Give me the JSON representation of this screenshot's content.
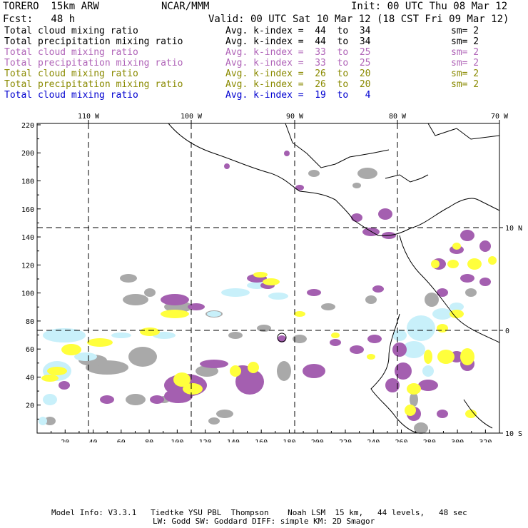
{
  "header": {
    "model_title": "TORERO  15km ARW",
    "org": "NCAR/MMM",
    "init": "Init: 00 UTC Thu 08 Mar 12",
    "fcst": "Fcst:   48 h",
    "valid": "Valid: 00 UTC Sat 10 Mar 12 (18 CST Fri 09 Mar 12)"
  },
  "legend": [
    {
      "field": "Total cloud mixing ratio",
      "avg": "Avg. k-index =  44  to  34",
      "sm": "sm= 2",
      "color": "#000000"
    },
    {
      "field": "Total precipitation mixing ratio",
      "avg": "Avg. k-index =  44  to  34",
      "sm": "sm= 2",
      "color": "#000000"
    },
    {
      "field": "Total cloud mixing ratio",
      "avg": "Avg. k-index =  33  to  25",
      "sm": "sm= 2",
      "color": "#b064b8"
    },
    {
      "field": "Total precipitation mixing ratio",
      "avg": "Avg. k-index =  33  to  25",
      "sm": "sm= 2",
      "color": "#b064b8"
    },
    {
      "field": "Total cloud mixing ratio",
      "avg": "Avg. k-index =  26  to  20",
      "sm": "sm= 2",
      "color": "#8a8a00"
    },
    {
      "field": "Total precipitation mixing ratio",
      "avg": "Avg. k-index =  26  to  20",
      "sm": "sm= 2",
      "color": "#8a8a00"
    },
    {
      "field": "Total cloud mixing ratio",
      "avg": "Avg. k-index =  19  to   4",
      "sm": "",
      "color": "#0000d0"
    }
  ],
  "map": {
    "lon_labels": [
      "110 W",
      "100 W",
      "90 W",
      "80 W",
      "70 W"
    ],
    "lat_labels": [
      "10 N",
      "0",
      "10 S"
    ],
    "grid_y_labels": [
      "220",
      "200",
      "180",
      "160",
      "140",
      "120",
      "100",
      "80",
      "60",
      "40",
      "20"
    ],
    "grid_x_labels": [
      "20",
      "40",
      "60",
      "80",
      "100",
      "120",
      "140",
      "160",
      "180",
      "200",
      "220",
      "240",
      "260",
      "280",
      "300",
      "320"
    ],
    "colors": {
      "gray": "#a9a9a9",
      "purple": "#a45fb0",
      "yellow": "#ffff3c",
      "lightblue": "#c8f0fa"
    }
  },
  "footer": {
    "line1": "Model Info: V3.3.1   Tiedtke YSU PBL  Thompson    Noah LSM  15 km,   44 levels,   48 sec",
    "line2": "LW: Godd SW: Goddard DIFF: simple KM: 2D Smagor"
  }
}
